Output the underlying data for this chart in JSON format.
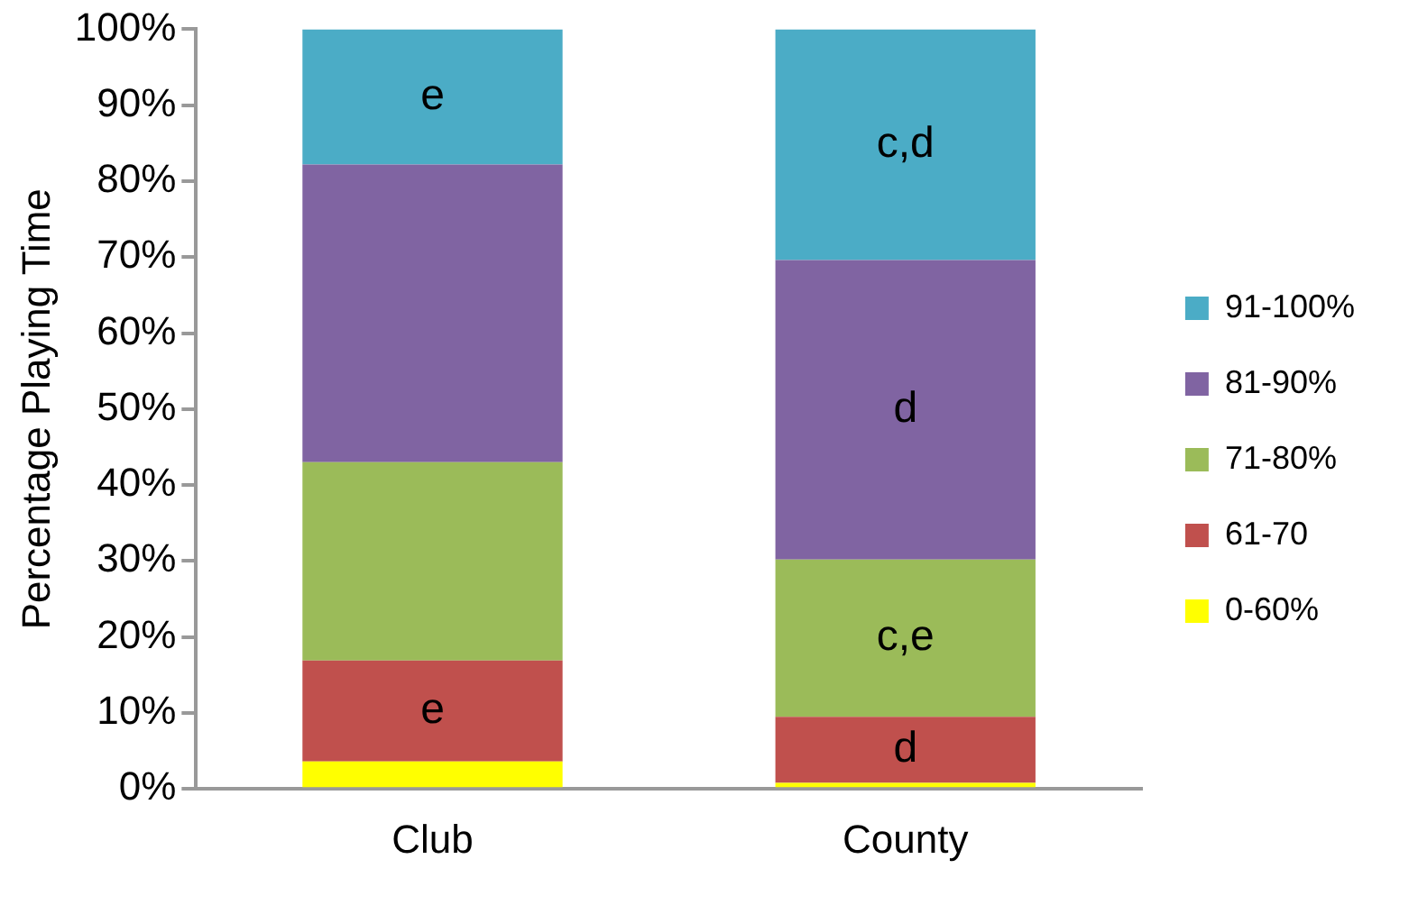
{
  "chart_data": {
    "type": "bar",
    "stacked": true,
    "ylabel": "Percentage Playing Time",
    "categories": [
      "Club",
      "County"
    ],
    "series": [
      {
        "name": "0-60%",
        "color": "#ffff00",
        "values": [
          3.6,
          0.8
        ]
      },
      {
        "name": "61-70",
        "color": "#c0504d",
        "values": [
          13.3,
          8.7
        ],
        "value_labels": [
          "e",
          "d"
        ]
      },
      {
        "name": "71-80%",
        "color": "#9bbb59",
        "values": [
          26.1,
          20.7
        ],
        "value_labels": [
          null,
          "c,e"
        ]
      },
      {
        "name": "81-90%",
        "color": "#8064a2",
        "values": [
          39.2,
          39.4
        ],
        "value_labels": [
          null,
          "d"
        ]
      },
      {
        "name": "91-100%",
        "color": "#4bacc6",
        "values": [
          17.8,
          30.4
        ],
        "value_labels": [
          "e",
          "c,d"
        ]
      }
    ],
    "ylim": [
      0,
      100
    ],
    "yticks": [
      {
        "value": 0,
        "label": "0%"
      },
      {
        "value": 10,
        "label": "10%"
      },
      {
        "value": 20,
        "label": "20%"
      },
      {
        "value": 30,
        "label": "30%"
      },
      {
        "value": 40,
        "label": "40%"
      },
      {
        "value": 50,
        "label": "50%"
      },
      {
        "value": 60,
        "label": "60%"
      },
      {
        "value": 70,
        "label": "70%"
      },
      {
        "value": 80,
        "label": "80%"
      },
      {
        "value": 90,
        "label": "90%"
      },
      {
        "value": 100,
        "label": "100%"
      }
    ],
    "grid": false,
    "legend": "right"
  }
}
